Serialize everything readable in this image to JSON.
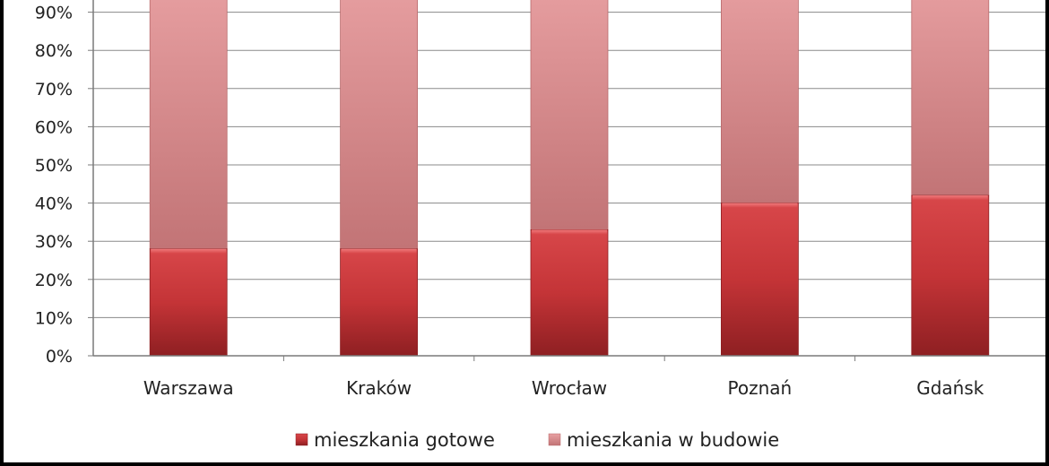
{
  "chart_data": {
    "type": "bar",
    "stacked": true,
    "normalized": true,
    "categories": [
      "Warszawa",
      "Kraków",
      "Wrocław",
      "Poznań",
      "Gdańsk"
    ],
    "series": [
      {
        "name": "mieszkania gotowe",
        "values": [
          28,
          28,
          33,
          40,
          42
        ],
        "color": "#c8363a"
      },
      {
        "name": "mieszkania w budowie",
        "values": [
          72,
          72,
          67,
          60,
          58
        ],
        "color": "#d98a8c"
      }
    ],
    "y_ticks": [
      "0%",
      "10%",
      "20%",
      "30%",
      "40%",
      "50%",
      "60%",
      "70%",
      "80%",
      "90%"
    ],
    "ylim": [
      0,
      100
    ],
    "grid": true,
    "legend_position": "bottom"
  }
}
